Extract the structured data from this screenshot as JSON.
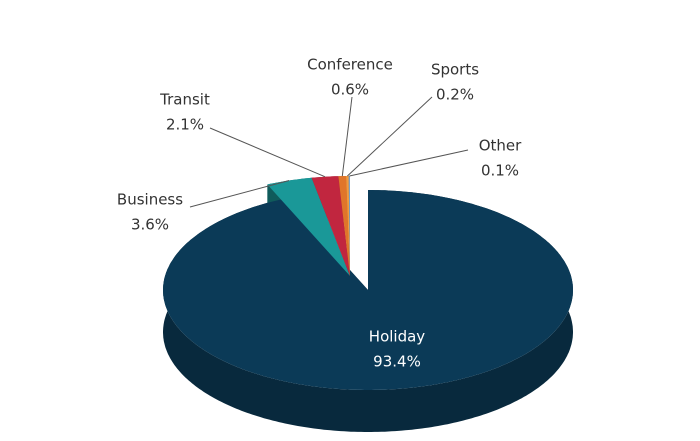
{
  "chart_data": {
    "type": "pie",
    "categories": [
      "Holiday",
      "Business",
      "Transit",
      "Conference",
      "Sports",
      "Other"
    ],
    "values": [
      93.4,
      3.6,
      2.1,
      0.6,
      0.2,
      0.1
    ],
    "value_labels": [
      "93.4%",
      "3.6%",
      "2.1%",
      "0.6%",
      "0.2%",
      "0.1%"
    ],
    "colors": [
      "#0b3a57",
      "#1a9898",
      "#c1263f",
      "#e0752a",
      "#f19a3e",
      "#7a9fc4"
    ]
  }
}
